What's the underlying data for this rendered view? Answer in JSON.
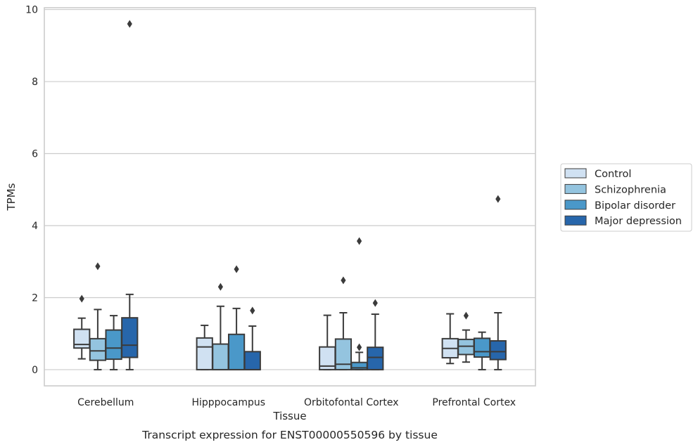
{
  "chart_data": {
    "type": "box",
    "xlabel": "Tissue",
    "ylabel": "TPMs",
    "caption": "Transcript expression for ENST00000550596 by tissue",
    "ylim": [
      -0.45,
      10.05
    ],
    "yticks": [
      "0",
      "2",
      "4",
      "6",
      "8",
      "10"
    ],
    "grid": "horizontal",
    "legend_position": "right",
    "categories": [
      "Cerebellum",
      "Hipppocampus",
      "Orbitofontal Cortex",
      "Prefrontal Cortex"
    ],
    "series": [
      {
        "name": "Control",
        "color": "#d0e1f2",
        "boxes": [
          {
            "whislo": 0.3,
            "q1": 0.6,
            "med": 0.7,
            "q3": 1.12,
            "whishi": 1.43,
            "fliers": [
              1.97
            ]
          },
          {
            "whislo": 0.0,
            "q1": 0.0,
            "med": 0.63,
            "q3": 0.88,
            "whishi": 1.23,
            "fliers": []
          },
          {
            "whislo": 0.0,
            "q1": 0.0,
            "med": 0.1,
            "q3": 0.63,
            "whishi": 1.51,
            "fliers": []
          },
          {
            "whislo": 0.17,
            "q1": 0.33,
            "med": 0.59,
            "q3": 0.86,
            "whishi": 1.55,
            "fliers": []
          }
        ]
      },
      {
        "name": "Schizophrenia",
        "color": "#94c4df",
        "boxes": [
          {
            "whislo": 0.0,
            "q1": 0.26,
            "med": 0.52,
            "q3": 0.86,
            "whishi": 1.67,
            "fliers": [
              2.87
            ]
          },
          {
            "whislo": 0.0,
            "q1": 0.0,
            "med": 0.0,
            "q3": 0.71,
            "whishi": 1.76,
            "fliers": [
              2.3
            ]
          },
          {
            "whislo": 0.0,
            "q1": 0.0,
            "med": 0.15,
            "q3": 0.85,
            "whishi": 1.58,
            "fliers": [
              2.48
            ]
          },
          {
            "whislo": 0.21,
            "q1": 0.42,
            "med": 0.65,
            "q3": 0.84,
            "whishi": 1.1,
            "fliers": [
              1.5
            ]
          }
        ]
      },
      {
        "name": "Bipolar disorder",
        "color": "#4a98c9",
        "boxes": [
          {
            "whislo": 0.0,
            "q1": 0.29,
            "med": 0.6,
            "q3": 1.1,
            "whishi": 1.5,
            "fliers": []
          },
          {
            "whislo": 0.0,
            "q1": 0.0,
            "med": 0.0,
            "q3": 0.98,
            "whishi": 1.7,
            "fliers": [
              2.79
            ]
          },
          {
            "whislo": 0.0,
            "q1": 0.0,
            "med": 0.05,
            "q3": 0.2,
            "whishi": 0.48,
            "fliers": [
              0.62,
              3.57
            ]
          },
          {
            "whislo": 0.0,
            "q1": 0.35,
            "med": 0.5,
            "q3": 0.87,
            "whishi": 1.04,
            "fliers": []
          }
        ]
      },
      {
        "name": "Major depression",
        "color": "#2766ab",
        "boxes": [
          {
            "whislo": 0.0,
            "q1": 0.34,
            "med": 0.68,
            "q3": 1.44,
            "whishi": 2.09,
            "fliers": [
              9.6
            ]
          },
          {
            "whislo": 0.0,
            "q1": 0.0,
            "med": 0.0,
            "q3": 0.5,
            "whishi": 1.21,
            "fliers": [
              1.64
            ]
          },
          {
            "whislo": 0.0,
            "q1": 0.0,
            "med": 0.34,
            "q3": 0.62,
            "whishi": 1.54,
            "fliers": [
              1.85
            ]
          },
          {
            "whislo": 0.0,
            "q1": 0.28,
            "med": 0.5,
            "q3": 0.8,
            "whishi": 1.58,
            "fliers": [
              4.74
            ]
          }
        ]
      }
    ]
  }
}
